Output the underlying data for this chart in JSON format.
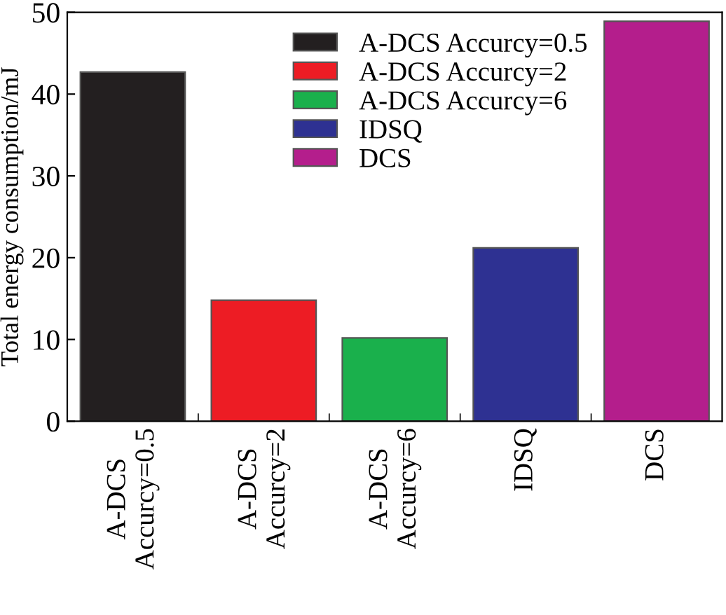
{
  "chart_data": {
    "type": "bar",
    "ylabel": "Total energy consumption/mJ",
    "categories": [
      "A-DCS\nAccurcy=0.5",
      "A-DCS\nAccurcy=2",
      "A-DCS\nAccurcy=6",
      "IDSQ",
      "DCS"
    ],
    "series": [
      {
        "name": "A-DCS Accurcy=0.5",
        "color": "#231f20",
        "values": [
          42.7,
          null,
          null,
          null,
          null
        ]
      },
      {
        "name": "A-DCS Accurcy=2",
        "color": "#ed1c24",
        "values": [
          null,
          14.8,
          null,
          null,
          null
        ]
      },
      {
        "name": "A-DCS Accurcy=6",
        "color": "#1ab04c",
        "values": [
          null,
          null,
          10.2,
          null,
          null
        ]
      },
      {
        "name": "IDSQ",
        "color": "#2e3192",
        "values": [
          null,
          null,
          null,
          21.2,
          null
        ]
      },
      {
        "name": "DCS",
        "color": "#b41e8c",
        "values": [
          null,
          null,
          null,
          null,
          48.9
        ]
      }
    ],
    "ylim": [
      0,
      50
    ],
    "yticks": [
      0,
      10,
      20,
      30,
      40,
      50
    ],
    "grid": false,
    "legend": "top"
  }
}
